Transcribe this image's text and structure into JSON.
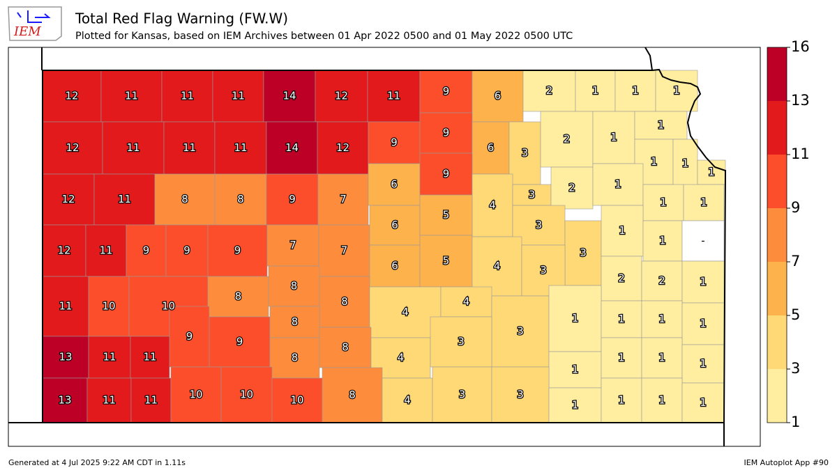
{
  "header": {
    "title": "Total Red Flag Warning (FW.W)",
    "subtitle": "Plotted for Kansas, based on IEM Archives  between 01 Apr 2022 0500 and 01 May 2022 0500 UTC",
    "logo": "IEM"
  },
  "map": {
    "counties": [
      12,
      11,
      11,
      11,
      14,
      12,
      11,
      9,
      6,
      2,
      1,
      1,
      1,
      12,
      11,
      11,
      11,
      14,
      12,
      9,
      9,
      6,
      3,
      2,
      1,
      1,
      1,
      1,
      1,
      12,
      11,
      8,
      8,
      9,
      7,
      6,
      9,
      4,
      3,
      2,
      1,
      1,
      1,
      12,
      11,
      9,
      9,
      9,
      7,
      7,
      6,
      5,
      3,
      3,
      1,
      1,
      null,
      6,
      5,
      4,
      3,
      2,
      2,
      1,
      11,
      10,
      10,
      8,
      8,
      8,
      9,
      9,
      8,
      4,
      4,
      3,
      1,
      1,
      1,
      1,
      13,
      11,
      11,
      8,
      8,
      4,
      3,
      1,
      1,
      1,
      1,
      13,
      11,
      11,
      10,
      10,
      10,
      8,
      4,
      3,
      3,
      1,
      1,
      1,
      1
    ],
    "missing_label": "-",
    "colorbar": {
      "levels": [
        1,
        3,
        5,
        7,
        9,
        11,
        13,
        16
      ],
      "colors": [
        "#ffeda0",
        "#fed976",
        "#feb24c",
        "#fd8d3c",
        "#fc4e2a",
        "#e31a1c",
        "#bd0026"
      ],
      "missing_color": "#ffffff"
    }
  },
  "footer": {
    "left": "Generated at 4 Jul 2025 9:22 AM CDT in 1.11s",
    "right": "IEM Autoplot App #90"
  }
}
